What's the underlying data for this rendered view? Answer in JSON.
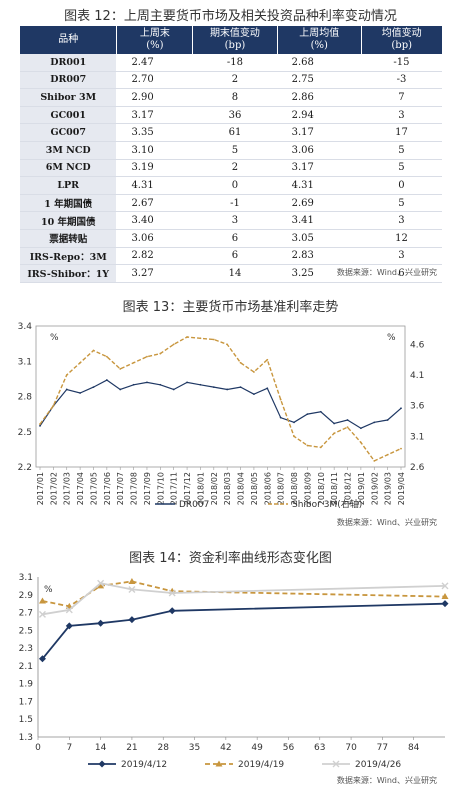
{
  "table_figure": {
    "title": "图表 12：上周主要货币市场及相关投资品种利率变动情况",
    "headers": [
      "品种",
      "上周末\n(%)",
      "期末值变动\n(bp)",
      "上周均值\n(%)",
      "均值变动\n(bp)"
    ],
    "rows": [
      [
        "DR001",
        "2.47",
        "-18",
        "2.68",
        "-15"
      ],
      [
        "DR007",
        "2.70",
        "2",
        "2.75",
        "-3"
      ],
      [
        "Shibor 3M",
        "2.90",
        "8",
        "2.86",
        "7"
      ],
      [
        "GC001",
        "3.17",
        "36",
        "2.94",
        "3"
      ],
      [
        "GC007",
        "3.35",
        "61",
        "3.17",
        "17"
      ],
      [
        "3M NCD",
        "3.10",
        "5",
        "3.06",
        "5"
      ],
      [
        "6M NCD",
        "3.19",
        "2",
        "3.17",
        "5"
      ],
      [
        "LPR",
        "4.31",
        "0",
        "4.31",
        "0"
      ],
      [
        "1 年期国债",
        "2.67",
        "-1",
        "2.69",
        "5"
      ],
      [
        "10 年期国债",
        "3.40",
        "3",
        "3.41",
        "3"
      ],
      [
        "票据转贴",
        "3.06",
        "6",
        "3.05",
        "12"
      ],
      [
        "IRS-Repo：3M",
        "2.82",
        "6",
        "2.83",
        "3"
      ],
      [
        "IRS-Shibor：1Y",
        "3.27",
        "14",
        "3.25",
        "6"
      ]
    ],
    "source": "数据来源：Wind、兴业研究"
  },
  "chart_data": [
    {
      "type": "line",
      "title": "图表 13：主要货币市场基准利率走势",
      "ylabel": "%",
      "y2label": "%",
      "ylim": [
        2.2,
        3.4
      ],
      "yticks": [
        "2.2",
        "2.5",
        "2.8",
        "3.1",
        "3.4"
      ],
      "y2lim": [
        2.6,
        4.9
      ],
      "y2ticks": [
        "2.6",
        "3.1",
        "3.6",
        "4.1",
        "4.6"
      ],
      "x": [
        "2017/01",
        "2017/02",
        "2017/03",
        "2017/04",
        "2017/05",
        "2017/06",
        "2017/07",
        "2017/08",
        "2017/09",
        "2017/10",
        "2017/11",
        "2017/12",
        "2018/01",
        "2018/02",
        "2018/03",
        "2018/04",
        "2018/05",
        "2018/06",
        "2018/07",
        "2018/08",
        "2018/09",
        "2018/10",
        "2018/11",
        "2018/12",
        "2019/01",
        "2019/02",
        "2019/03",
        "2019/04"
      ],
      "series": [
        {
          "name": "DR007",
          "color": "#1f3864",
          "dash": false,
          "axis": "left",
          "values": [
            2.55,
            2.72,
            2.86,
            2.83,
            2.88,
            2.94,
            2.86,
            2.9,
            2.92,
            2.9,
            2.86,
            2.92,
            2.9,
            2.88,
            2.86,
            2.88,
            2.82,
            2.87,
            2.62,
            2.58,
            2.65,
            2.67,
            2.57,
            2.6,
            2.53,
            2.58,
            2.6,
            2.7
          ]
        },
        {
          "name": "Shibor 3M(右轴)",
          "color": "#c8963e",
          "dash": true,
          "axis": "right",
          "values": [
            3.3,
            3.6,
            4.1,
            4.3,
            4.5,
            4.4,
            4.2,
            4.3,
            4.4,
            4.45,
            4.6,
            4.72,
            4.7,
            4.68,
            4.6,
            4.3,
            4.15,
            4.35,
            3.7,
            3.1,
            2.95,
            2.92,
            3.15,
            3.25,
            3.0,
            2.7,
            2.8,
            2.9
          ]
        }
      ],
      "legend": "bottom",
      "source": "数据来源：Wind、兴业研究"
    },
    {
      "type": "line",
      "title": "图表 14：资金利率曲线形态变化图",
      "ylabel": "%",
      "ylim": [
        1.3,
        3.1
      ],
      "yticks": [
        "1.3",
        "1.5",
        "1.7",
        "1.9",
        "2.1",
        "2.3",
        "2.5",
        "2.7",
        "2.9",
        "3.1"
      ],
      "xlim": [
        0,
        91
      ],
      "xticks": [
        "0",
        "7",
        "14",
        "21",
        "28",
        "35",
        "42",
        "49",
        "56",
        "63",
        "70",
        "77",
        "84"
      ],
      "series": [
        {
          "name": "2019/4/12",
          "color": "#1f3864",
          "marker": "diamond",
          "dash": false,
          "x": [
            1,
            7,
            14,
            21,
            30,
            91
          ],
          "values": [
            2.18,
            2.55,
            2.58,
            2.62,
            2.72,
            2.8
          ]
        },
        {
          "name": "2019/4/19",
          "color": "#c8963e",
          "marker": "triangle",
          "dash": true,
          "x": [
            1,
            7,
            14,
            21,
            30,
            91
          ],
          "values": [
            2.83,
            2.77,
            3.0,
            3.05,
            2.94,
            2.88
          ]
        },
        {
          "name": "2019/4/26",
          "color": "#d0d0d0",
          "marker": "x",
          "dash": false,
          "x": [
            1,
            7,
            14,
            21,
            30,
            91
          ],
          "values": [
            2.68,
            2.73,
            3.03,
            2.96,
            2.92,
            3.0
          ]
        }
      ],
      "legend": "bottom",
      "source": "数据来源：Wind、兴业研究"
    }
  ]
}
